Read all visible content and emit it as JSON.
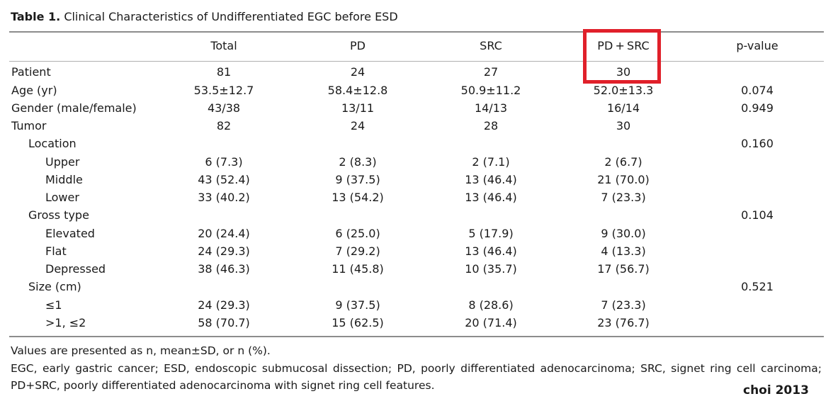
{
  "caption": {
    "label": "Table 1.",
    "title": "Clinical Characteristics of Undifferentiated EGC before ESD"
  },
  "columns": [
    "Total",
    "PD",
    "SRC",
    "PD + SRC",
    "p-value"
  ],
  "rows": [
    {
      "label": "Patient",
      "indent": 0,
      "values": [
        "81",
        "24",
        "27",
        "30",
        ""
      ]
    },
    {
      "label": "Age (yr)",
      "indent": 0,
      "values": [
        "53.5±12.7",
        "58.4±12.8",
        "50.9±11.2",
        "52.0±13.3",
        "0.074"
      ]
    },
    {
      "label": "Gender (male/female)",
      "indent": 0,
      "values": [
        "43/38",
        "13/11",
        "14/13",
        "16/14",
        "0.949"
      ]
    },
    {
      "label": "Tumor",
      "indent": 0,
      "values": [
        "82",
        "24",
        "28",
        "30",
        ""
      ]
    },
    {
      "label": "Location",
      "indent": 1,
      "values": [
        "",
        "",
        "",
        "",
        "0.160"
      ]
    },
    {
      "label": "Upper",
      "indent": 2,
      "values": [
        "6 (7.3)",
        "2 (8.3)",
        "2 (7.1)",
        "2 (6.7)",
        ""
      ]
    },
    {
      "label": "Middle",
      "indent": 2,
      "values": [
        "43 (52.4)",
        "9 (37.5)",
        "13 (46.4)",
        "21 (70.0)",
        ""
      ]
    },
    {
      "label": "Lower",
      "indent": 2,
      "values": [
        "33 (40.2)",
        "13 (54.2)",
        "13 (46.4)",
        "7 (23.3)",
        ""
      ]
    },
    {
      "label": "Gross type",
      "indent": 1,
      "values": [
        "",
        "",
        "",
        "",
        "0.104"
      ]
    },
    {
      "label": "Elevated",
      "indent": 2,
      "values": [
        "20 (24.4)",
        "6 (25.0)",
        "5 (17.9)",
        "9 (30.0)",
        ""
      ]
    },
    {
      "label": "Flat",
      "indent": 2,
      "values": [
        "24 (29.3)",
        "7 (29.2)",
        "13 (46.4)",
        "4 (13.3)",
        ""
      ]
    },
    {
      "label": "Depressed",
      "indent": 2,
      "values": [
        "38 (46.3)",
        "11 (45.8)",
        "10 (35.7)",
        "17 (56.7)",
        ""
      ]
    },
    {
      "label": "Size (cm)",
      "indent": 1,
      "values": [
        "",
        "",
        "",
        "",
        "0.521"
      ]
    },
    {
      "label": "≤1",
      "indent": 2,
      "values": [
        "24 (29.3)",
        "9 (37.5)",
        "8 (28.6)",
        "7 (23.3)",
        ""
      ]
    },
    {
      "label": ">1, ≤2",
      "indent": 2,
      "values": [
        "58 (70.7)",
        "15 (62.5)",
        "20 (71.4)",
        "23 (76.7)",
        ""
      ]
    }
  ],
  "footnotes": [
    "Values are presented as n, mean±SD, or n (%).",
    "EGC, early gastric cancer; ESD, endoscopic submucosal dissection; PD, poorly differentiated adenocarcinoma; SRC, signet ring cell carcinoma; PD+SRC, poorly differentiated adenocarcinoma with signet ring cell features."
  ],
  "credit": "choi 2013",
  "colors": {
    "highlight": "#e0202a",
    "rule": "#8c8c8c"
  }
}
